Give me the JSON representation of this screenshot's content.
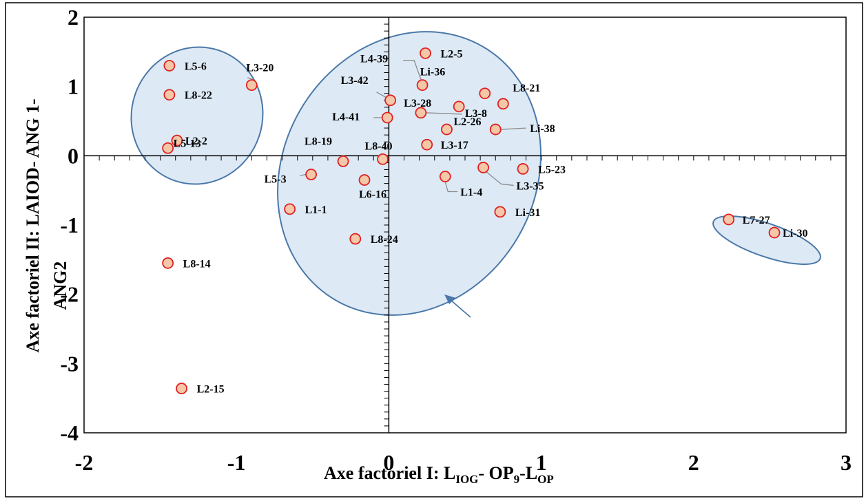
{
  "chart_data": {
    "type": "scatter",
    "title": "",
    "xlabel": {
      "main": "Axe factoriel I:  L",
      "s1": "IOG",
      "mid": "- OP",
      "s2": "9",
      "mid2": "-L",
      "s3": "OP"
    },
    "ylabel": {
      "line1": "Axe factoriel II: LAIOD- ANG 1-",
      "line2": "ANG2"
    },
    "xlim": [
      -2,
      3
    ],
    "ylim": [
      -4,
      2
    ],
    "xticks": [
      "-2",
      "-1",
      "0",
      "1",
      "2",
      "3"
    ],
    "yticks": [
      "2",
      "1",
      "0",
      "-1",
      "-2",
      "-3",
      "-4"
    ],
    "grid": false,
    "marker_fill": "#f4c7a8",
    "marker_edge": "#e02020",
    "group_fill": "#dde9f5",
    "group_edge": "#4a78a8",
    "points": [
      {
        "label": "L5-6",
        "x": -1.44,
        "y": 1.3
      },
      {
        "label": "L3-20",
        "x": -0.9,
        "y": 1.02
      },
      {
        "label": "L8-22",
        "x": -1.44,
        "y": 0.88
      },
      {
        "label": "L2-2",
        "x": -1.39,
        "y": 0.22
      },
      {
        "label": "L5-13",
        "x": -1.45,
        "y": 0.11
      },
      {
        "label": "L2-5",
        "x": 0.24,
        "y": 1.48
      },
      {
        "label": "L4-39",
        "x": 0.22,
        "y": 1.02
      },
      {
        "label": "Li-36",
        "x": 0.63,
        "y": 0.9
      },
      {
        "label": "L8-21",
        "x": 0.75,
        "y": 0.75
      },
      {
        "label": "L3-42",
        "x": 0.01,
        "y": 0.8
      },
      {
        "label": "L3-28",
        "x": 0.46,
        "y": 0.71
      },
      {
        "label": "L3-8",
        "x": 0.21,
        "y": 0.62
      },
      {
        "label": "L4-41",
        "x": -0.01,
        "y": 0.55
      },
      {
        "label": "L2-26",
        "x": 0.38,
        "y": 0.38
      },
      {
        "label": "Li-38",
        "x": 0.7,
        "y": 0.38
      },
      {
        "label": "L3-17",
        "x": 0.25,
        "y": 0.16
      },
      {
        "label": "L8-19",
        "x": -0.3,
        "y": -0.08
      },
      {
        "label": "L8-40",
        "x": -0.04,
        "y": -0.05
      },
      {
        "label": "L5-23",
        "x": 0.88,
        "y": -0.19
      },
      {
        "label": "L3-35",
        "x": 0.62,
        "y": -0.17
      },
      {
        "label": "L5-3",
        "x": -0.51,
        "y": -0.27
      },
      {
        "label": "L6-16",
        "x": -0.16,
        "y": -0.35
      },
      {
        "label": "L1-4",
        "x": 0.37,
        "y": -0.3
      },
      {
        "label": "L1-1",
        "x": -0.65,
        "y": -0.77
      },
      {
        "label": "Li-31",
        "x": 0.73,
        "y": -0.81
      },
      {
        "label": "L8-24",
        "x": -0.22,
        "y": -1.2
      },
      {
        "label": "L7-27",
        "x": 2.23,
        "y": -0.92
      },
      {
        "label": "Li-30",
        "x": 2.53,
        "y": -1.11
      },
      {
        "label": "L8-14",
        "x": -1.45,
        "y": -1.55
      },
      {
        "label": "L2-15",
        "x": -1.36,
        "y": -3.36
      }
    ]
  }
}
